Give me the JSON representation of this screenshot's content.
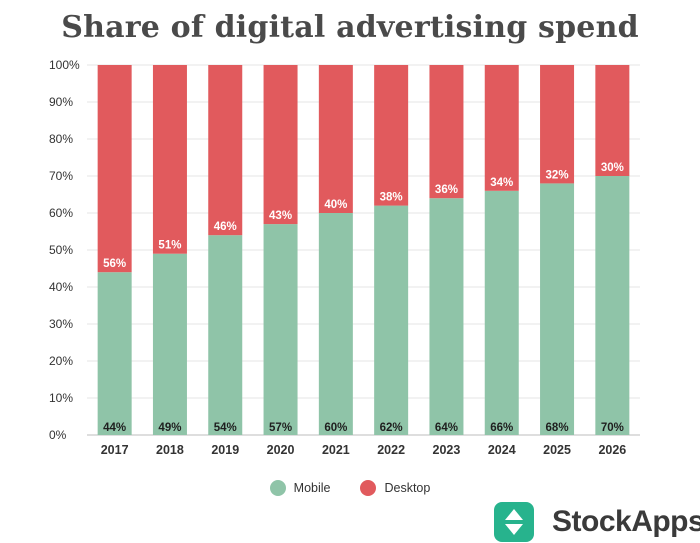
{
  "chart_data": {
    "type": "bar",
    "stacked": true,
    "percent_stacked": true,
    "title": "Share of digital advertising spend",
    "categories": [
      "2017",
      "2018",
      "2019",
      "2020",
      "2021",
      "2022",
      "2023",
      "2024",
      "2025",
      "2026"
    ],
    "series": [
      {
        "name": "Mobile",
        "color": "#8fc4a8",
        "values": [
          44,
          49,
          54,
          57,
          60,
          62,
          64,
          66,
          68,
          70
        ]
      },
      {
        "name": "Desktop",
        "color": "#e15a5d",
        "values": [
          56,
          51,
          46,
          43,
          40,
          38,
          36,
          34,
          32,
          30
        ]
      }
    ],
    "ylim": [
      0,
      100
    ],
    "yticks": [
      "0%",
      "10%",
      "20%",
      "30%",
      "40%",
      "50%",
      "60%",
      "70%",
      "80%",
      "90%",
      "100%"
    ],
    "grid": true,
    "legend_position": "bottom",
    "data_labels_suffix": "%"
  },
  "brand": {
    "name": "StockApps",
    "color": "#27b38d",
    "icon": "up-down-arrows-icon"
  }
}
